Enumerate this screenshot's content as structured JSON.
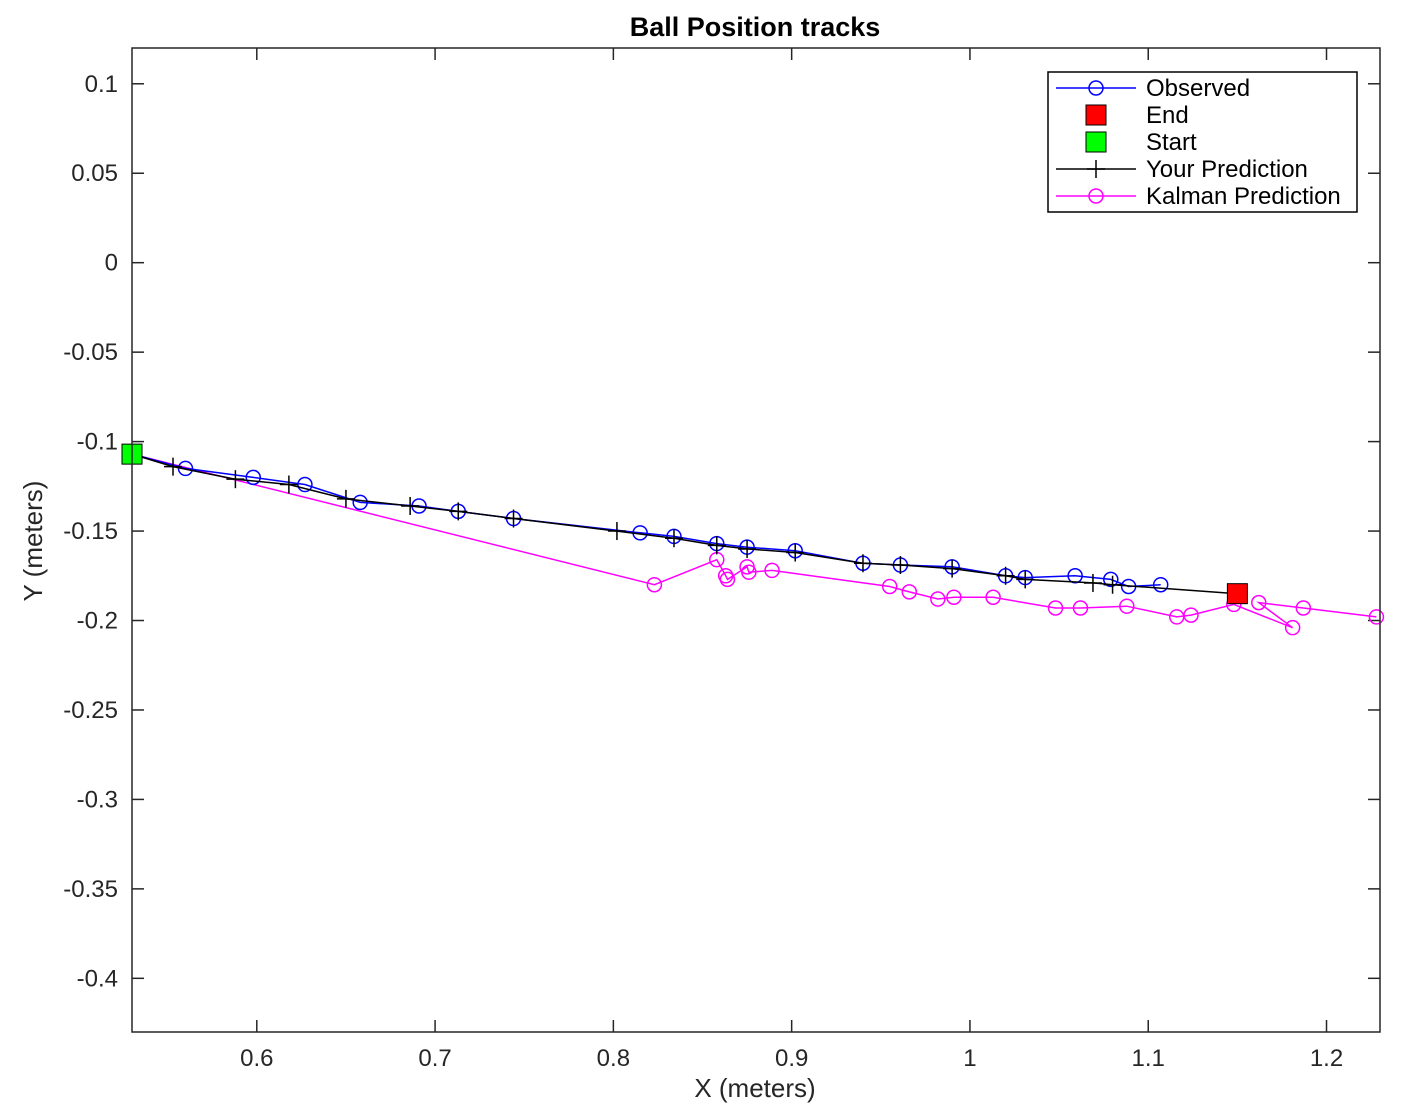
{
  "chart_data": {
    "type": "line",
    "title": "Ball Position tracks",
    "xlabel": "X (meters)",
    "ylabel": "Y (meters)",
    "xlim": [
      0.53,
      1.23
    ],
    "ylim": [
      -0.43,
      0.12
    ],
    "xticks": [
      0.6,
      0.7,
      0.8,
      0.9,
      1.0,
      1.1,
      1.2
    ],
    "xtick_labels": [
      "0.6",
      "0.7",
      "0.8",
      "0.9",
      "1",
      "1.1",
      "1.2"
    ],
    "yticks": [
      0.1,
      0.05,
      0.0,
      -0.05,
      -0.1,
      -0.15,
      -0.2,
      -0.25,
      -0.3,
      -0.35,
      -0.4
    ],
    "ytick_labels": [
      "0.1",
      "0.05",
      "0",
      "-0.05",
      "-0.1",
      "-0.15",
      "-0.2",
      "-0.25",
      "-0.3",
      "-0.35",
      "-0.4"
    ],
    "grid": false,
    "legend_position": "top-right",
    "series": [
      {
        "name": "Observed",
        "color": "#0000ff",
        "marker": "circle",
        "line": true,
        "x": [
          0.53,
          0.56,
          0.598,
          0.627,
          0.658,
          0.691,
          0.713,
          0.744,
          0.815,
          0.834,
          0.858,
          0.875,
          0.902,
          0.94,
          0.961,
          0.99,
          1.02,
          1.031,
          1.059,
          1.079,
          1.089,
          1.107
        ],
        "y": [
          -0.107,
          -0.115,
          -0.12,
          -0.124,
          -0.134,
          -0.136,
          -0.139,
          -0.143,
          -0.151,
          -0.153,
          -0.157,
          -0.159,
          -0.161,
          -0.168,
          -0.169,
          -0.17,
          -0.175,
          -0.176,
          -0.175,
          -0.177,
          -0.181,
          -0.18
        ]
      },
      {
        "name": "End",
        "color": "#ff0000",
        "marker": "square",
        "line": false,
        "x": [
          1.15
        ],
        "y": [
          -0.185
        ]
      },
      {
        "name": "Start",
        "color": "#00ff00",
        "marker": "square",
        "line": false,
        "x": [
          0.53
        ],
        "y": [
          -0.107
        ]
      },
      {
        "name": "Your Prediction",
        "color": "#000000",
        "marker": "plus",
        "line": true,
        "x": [
          0.53,
          0.553,
          0.588,
          0.618,
          0.65,
          0.686,
          0.713,
          0.744,
          0.802,
          0.834,
          0.858,
          0.875,
          0.902,
          0.94,
          0.961,
          0.99,
          1.02,
          1.031,
          1.069,
          1.08,
          1.15
        ],
        "y": [
          -0.107,
          -0.114,
          -0.121,
          -0.124,
          -0.132,
          -0.136,
          -0.139,
          -0.143,
          -0.15,
          -0.154,
          -0.158,
          -0.16,
          -0.162,
          -0.168,
          -0.169,
          -0.171,
          -0.175,
          -0.177,
          -0.179,
          -0.18,
          -0.185
        ]
      },
      {
        "name": "Kalman Prediction",
        "color": "#ff00ff",
        "marker": "circle",
        "line": true,
        "x": [
          0.53,
          0.823,
          0.858,
          0.863,
          0.864,
          0.875,
          0.876,
          0.889,
          0.955,
          0.966,
          0.982,
          0.991,
          1.013,
          1.048,
          1.062,
          1.088,
          1.116,
          1.124,
          1.148,
          1.181,
          1.162,
          1.187,
          1.228
        ],
        "y": [
          -0.107,
          -0.18,
          -0.166,
          -0.175,
          -0.177,
          -0.17,
          -0.173,
          -0.172,
          -0.181,
          -0.184,
          -0.188,
          -0.187,
          -0.187,
          -0.193,
          -0.193,
          -0.192,
          -0.198,
          -0.197,
          -0.191,
          -0.204,
          -0.19,
          -0.193,
          -0.198
        ]
      }
    ]
  }
}
